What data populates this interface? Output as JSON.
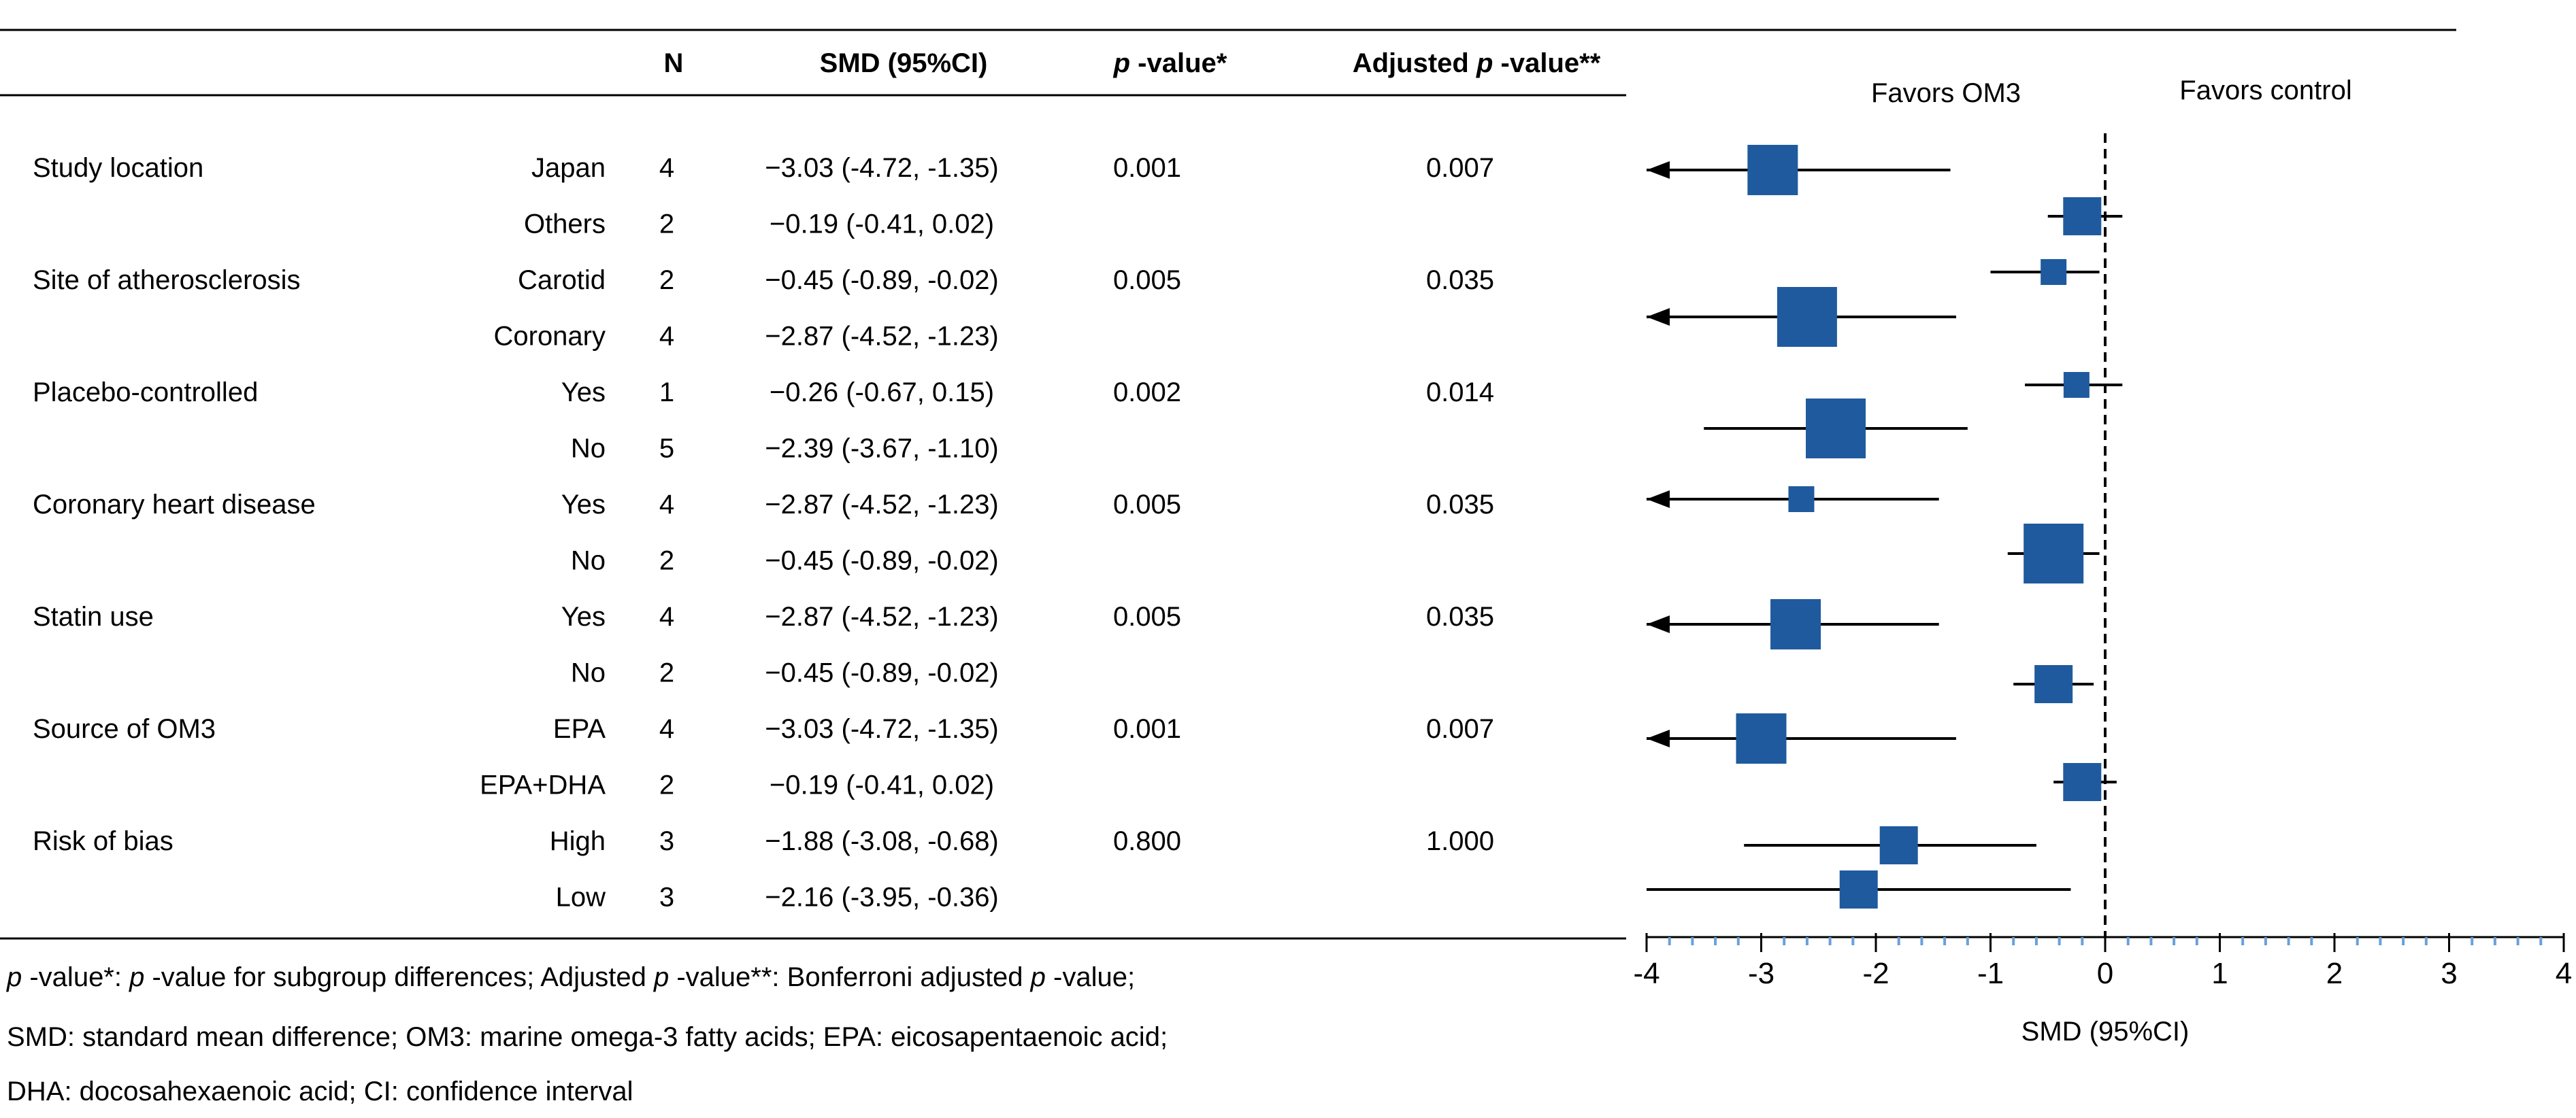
{
  "headers": {
    "n": "N",
    "smd": "SMD (95%CI)",
    "p_italic": "p",
    "p_rest": " -value*",
    "adj_prefix": "Adjusted ",
    "adj_italic": "p",
    "adj_rest": " -value**"
  },
  "groups": [
    {
      "label": "Study location",
      "rows": [
        {
          "sub": "Japan",
          "n": "4",
          "ci_text": "−3.03 (-4.72, -1.35)"
        },
        {
          "sub": "Others",
          "n": "2",
          "ci_text": "−0.19 (-0.41, 0.02)"
        }
      ],
      "p": "0.001",
      "adj_p": "0.007"
    },
    {
      "label": "Site of atherosclerosis",
      "rows": [
        {
          "sub": "Carotid",
          "n": "2",
          "ci_text": "−0.45 (-0.89, -0.02)"
        },
        {
          "sub": "Coronary",
          "n": "4",
          "ci_text": "−2.87 (-4.52, -1.23)"
        }
      ],
      "p": "0.005",
      "adj_p": "0.035"
    },
    {
      "label": "Placebo-controlled",
      "rows": [
        {
          "sub": "Yes",
          "n": "1",
          "ci_text": "−0.26 (-0.67, 0.15)"
        },
        {
          "sub": "No",
          "n": "5",
          "ci_text": "−2.39 (-3.67, -1.10)"
        }
      ],
      "p": "0.002",
      "adj_p": "0.014"
    },
    {
      "label": "Coronary heart disease",
      "rows": [
        {
          "sub": "Yes",
          "n": "4",
          "ci_text": "−2.87 (-4.52, -1.23)"
        },
        {
          "sub": "No",
          "n": "2",
          "ci_text": "−0.45 (-0.89, -0.02)"
        }
      ],
      "p": "0.005",
      "adj_p": "0.035"
    },
    {
      "label": "Statin use",
      "rows": [
        {
          "sub": "Yes",
          "n": "4",
          "ci_text": "−2.87 (-4.52, -1.23)"
        },
        {
          "sub": "No",
          "n": "2",
          "ci_text": "−0.45 (-0.89, -0.02)"
        }
      ],
      "p": "0.005",
      "adj_p": "0.035"
    },
    {
      "label": "Source of OM3",
      "rows": [
        {
          "sub": "EPA",
          "n": "4",
          "ci_text": "−3.03 (-4.72, -1.35)"
        },
        {
          "sub": "EPA+DHA",
          "n": "2",
          "ci_text": "−0.19 (-0.41, 0.02)"
        }
      ],
      "p": "0.001",
      "adj_p": "0.007"
    },
    {
      "label": "Risk of bias",
      "rows": [
        {
          "sub": "High",
          "n": "3",
          "ci_text": "−1.88 (-3.08, -0.68)"
        },
        {
          "sub": "Low",
          "n": "3",
          "ci_text": "−2.16 (-3.95, -0.36)"
        }
      ],
      "p": "0.800",
      "adj_p": "1.000"
    }
  ],
  "footnote": {
    "line1": [
      {
        "t": "p",
        "i": true
      },
      {
        "t": " -value*: ",
        "i": false
      },
      {
        "t": "p",
        "i": true
      },
      {
        "t": " -value for subgroup differences; Adjusted ",
        "i": false
      },
      {
        "t": "p",
        "i": true
      },
      {
        "t": " -value**: Bonferroni adjusted ",
        "i": false
      },
      {
        "t": "p",
        "i": true
      },
      {
        "t": " -value;",
        "i": false
      }
    ],
    "line2": "SMD: standard mean difference; OM3: marine omega-3 fatty acids; EPA: eicosapentaenoic acid;",
    "line3": "DHA: docosahexaenoic acid; CI: confidence interval"
  },
  "chart_data": {
    "type": "forest",
    "xlabel": "SMD (95%CI)",
    "xlim": [
      -4,
      4
    ],
    "xticks": [
      -4,
      -3,
      -2,
      -1,
      0,
      1,
      2,
      3,
      4
    ],
    "xtick_labels": [
      "-4",
      "-3",
      "-2",
      "-1",
      "0",
      "1",
      "2",
      "3",
      "4"
    ],
    "reference_line": 0,
    "favors_left": "Favors OM3",
    "favors_right": "Favors control",
    "marker_color": "#1f5a9e",
    "minor_tick_color": "#6aa0d8",
    "series": [
      {
        "name": "Japan",
        "est": -2.9,
        "low": -4.0,
        "high": -1.35,
        "arrow_left": true,
        "weight": 3
      },
      {
        "name": "Others",
        "est": -0.2,
        "low": -0.5,
        "high": 0.15,
        "arrow_left": false,
        "weight": 2
      },
      {
        "name": "Carotid",
        "est": -0.45,
        "low": -1.0,
        "high": -0.05,
        "arrow_left": false,
        "weight": 1
      },
      {
        "name": "Coronary",
        "est": -2.6,
        "low": -4.0,
        "high": -1.3,
        "arrow_left": true,
        "weight": 4
      },
      {
        "name": "Placebo Yes",
        "est": -0.25,
        "low": -0.7,
        "high": 0.15,
        "arrow_left": false,
        "weight": 1
      },
      {
        "name": "Placebo No",
        "est": -2.35,
        "low": -3.5,
        "high": -1.2,
        "arrow_left": false,
        "weight": 4
      },
      {
        "name": "CHD Yes",
        "est": -2.65,
        "low": -4.0,
        "high": -1.45,
        "arrow_left": true,
        "weight": 1
      },
      {
        "name": "CHD No",
        "est": -0.45,
        "low": -0.85,
        "high": -0.05,
        "arrow_left": false,
        "weight": 4
      },
      {
        "name": "Statin Yes",
        "est": -2.7,
        "low": -4.0,
        "high": -1.45,
        "arrow_left": true,
        "weight": 3
      },
      {
        "name": "Statin No",
        "est": -0.45,
        "low": -0.8,
        "high": -0.1,
        "arrow_left": false,
        "weight": 2
      },
      {
        "name": "EPA",
        "est": -3.0,
        "low": -4.0,
        "high": -1.3,
        "arrow_left": true,
        "weight": 3
      },
      {
        "name": "EPA+DHA",
        "est": -0.2,
        "low": -0.45,
        "high": 0.1,
        "arrow_left": false,
        "weight": 2
      },
      {
        "name": "Risk High",
        "est": -1.8,
        "low": -3.15,
        "high": -0.6,
        "arrow_left": false,
        "weight": 2
      },
      {
        "name": "Risk Low",
        "est": -2.15,
        "low": -4.0,
        "high": -0.3,
        "arrow_left": false,
        "weight": 2
      }
    ]
  }
}
